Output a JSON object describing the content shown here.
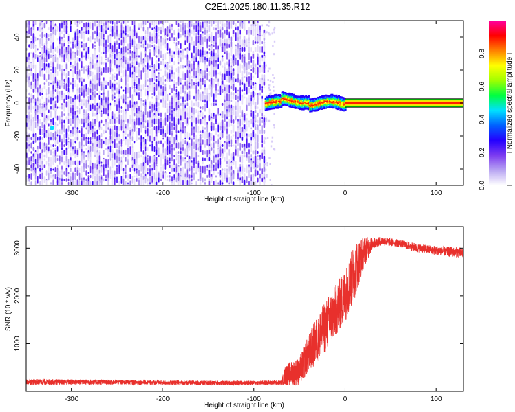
{
  "title": "C2E1.2025.180.11.35.R12",
  "chart_data": [
    {
      "type": "heatmap",
      "xlabel": "Height of straight line (km)",
      "ylabel": "Frequency (Hz)",
      "xlim": [
        -350,
        130
      ],
      "ylim": [
        -50,
        50
      ],
      "x_ticks": [
        -300,
        -200,
        -100,
        0,
        100
      ],
      "y_ticks": [
        -40,
        -20,
        0,
        20,
        40
      ],
      "colorbar": {
        "label": "Normalized spectral amplitude",
        "range": [
          0,
          1
        ],
        "ticks": [
          0.0,
          0.2,
          0.4,
          0.6,
          0.8
        ],
        "tick_labels": [
          "0.0",
          "0.2",
          "0.4",
          "0.6",
          "0.8"
        ],
        "colormap": [
          "#ffffff",
          "#b9a6f2",
          "#7d3cf0",
          "#2400ff",
          "#0060ff",
          "#00e0ff",
          "#00ff40",
          "#a0ff00",
          "#ffff00",
          "#ff8000",
          "#ff0000",
          "#ff00a0"
        ]
      },
      "regions": [
        {
          "x_range": [
            -350,
            -88
          ],
          "freq_range": [
            -50,
            50
          ],
          "amplitude": "noise, 0.0-0.3"
        },
        {
          "x_range": [
            -88,
            0
          ],
          "freq_range": [
            -5,
            5
          ],
          "amplitude": "signal, 0.4-1.0"
        },
        {
          "x_range": [
            0,
            130
          ],
          "freq_center": 0,
          "amplitude": "steady tone, 1.0"
        }
      ],
      "grid": false
    },
    {
      "type": "line",
      "xlabel": "Height of straight line (km)",
      "ylabel": "SNR (10 * v/v)",
      "xlim": [
        -350,
        130
      ],
      "ylim": [
        0,
        3450
      ],
      "x_ticks": [
        -300,
        -200,
        -100,
        0,
        100
      ],
      "y_ticks": [
        1000,
        2000,
        3000
      ],
      "color": "#e8302c",
      "profile": {
        "x": [
          -350,
          -300,
          -250,
          -200,
          -150,
          -100,
          -70,
          -65,
          -50,
          -40,
          -30,
          -20,
          -10,
          0,
          10,
          20,
          30,
          40,
          60,
          80,
          100,
          130
        ],
        "mean": [
          200,
          200,
          195,
          185,
          180,
          180,
          185,
          350,
          420,
          800,
          1100,
          1400,
          1700,
          2000,
          2500,
          2900,
          3100,
          3150,
          3100,
          3000,
          2950,
          2900
        ],
        "spread": [
          60,
          55,
          50,
          45,
          45,
          45,
          45,
          220,
          300,
          400,
          500,
          550,
          550,
          550,
          600,
          350,
          120,
          90,
          80,
          90,
          100,
          110
        ]
      },
      "grid": false
    }
  ]
}
